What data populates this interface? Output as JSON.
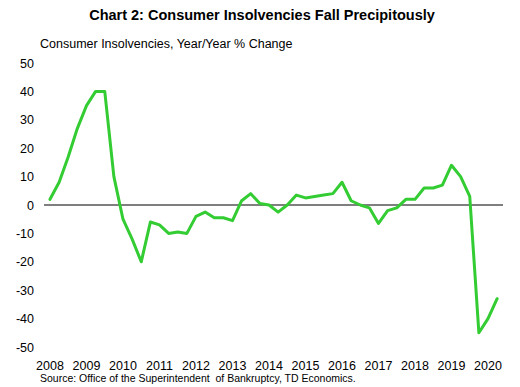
{
  "chart_data": {
    "type": "line",
    "title": "Chart 2: Consumer Insolvencies Fall Precipitously",
    "y_label": "Consumer Insolvencies, Year/Year % Change",
    "source": "Source: Office of the Superintendent  of Bankruptcy, TD Economics.",
    "categories": [
      "2008",
      null,
      null,
      null,
      "2009",
      null,
      null,
      null,
      "2010",
      null,
      null,
      null,
      "2011",
      null,
      null,
      null,
      "2012",
      null,
      null,
      null,
      "2013",
      null,
      null,
      null,
      "2014",
      null,
      null,
      null,
      "2015",
      null,
      null,
      null,
      "2016",
      null,
      null,
      null,
      "2017",
      null,
      null,
      null,
      "2018",
      null,
      null,
      null,
      "2019",
      null,
      null,
      null,
      "2020",
      null
    ],
    "values": [
      2,
      8,
      17,
      27,
      35,
      40,
      40,
      10,
      -5,
      -12,
      -20,
      -6,
      -7,
      -10,
      -9.5,
      -10,
      -4,
      -2.5,
      -4.5,
      -4.5,
      -5.5,
      1.5,
      4,
      0.5,
      0,
      -2.5,
      0,
      3.5,
      2.5,
      3,
      3.5,
      4,
      8,
      1.5,
      0,
      -1,
      -6.5,
      -2,
      -1,
      2,
      2,
      6,
      6,
      7,
      14,
      10,
      3,
      -45,
      -40,
      -33
    ],
    "color": "#33cc33",
    "ylim": [
      -50,
      50
    ],
    "yticks": [
      -50,
      -40,
      -30,
      -20,
      -10,
      0,
      10,
      20,
      30,
      40,
      50
    ],
    "grid": false
  }
}
